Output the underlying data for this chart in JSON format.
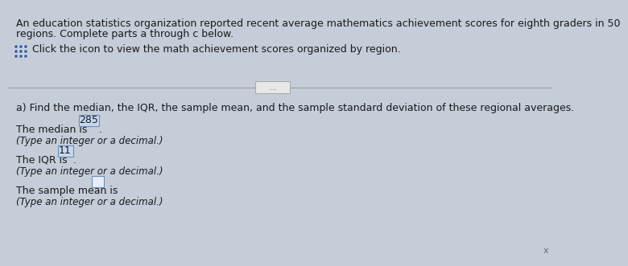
{
  "top_bg": "#c5cdd8",
  "bottom_bg": "#d0cece",
  "footer_bg": "#b8bcc4",
  "text_color": "#1a1a1a",
  "icon_color": "#3b5ea6",
  "highlight_color": "#c5d8f0",
  "box_border_color": "#6a8fc0",
  "empty_box_bg": "#e8eef5",
  "divider_color": "#a0a0a0",
  "btn_bg": "#e8e8e8",
  "btn_border": "#aaaaaa",
  "header_line1": "An education statistics organization reported recent average mathematics achievement scores for eighth graders in 50",
  "header_line2": "regions. Complete parts a through c below.",
  "click_text": "Click the icon to view the math achievement scores organized by region.",
  "divider_btn_text": "...",
  "section_a": "a) Find the median, the IQR, the sample mean, and the sample standard deviation of these regional averages.",
  "median_label": "The median is ",
  "median_value": "285",
  "iqr_label": "The IQR is ",
  "iqr_value": "11",
  "mean_label": "The sample mean is ",
  "hint_text": "(Type an integer or a decimal.)",
  "fs_main": 9.0,
  "fs_hint": 8.5,
  "fs_icon": 7.5
}
